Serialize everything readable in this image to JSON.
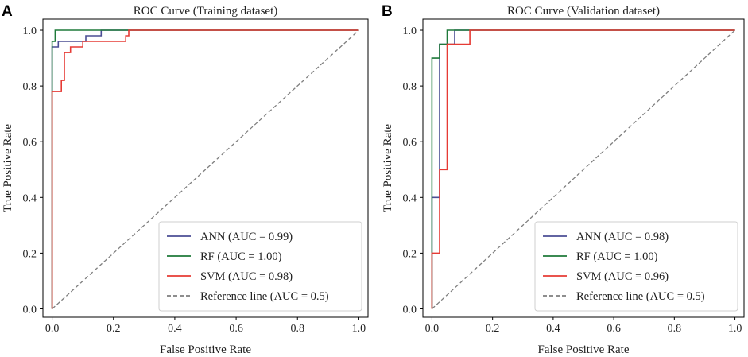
{
  "chart_data": [
    {
      "type": "line",
      "panel_label": "A",
      "title": "ROC Curve (Training dataset)",
      "xlabel": "False Positive Rate",
      "ylabel": "True Positive Rate",
      "xlim": [
        -0.03,
        1.03
      ],
      "ylim": [
        -0.03,
        1.04
      ],
      "xticks": [
        "0.0",
        "0.2",
        "0.4",
        "0.6",
        "0.8",
        "1.0"
      ],
      "yticks": [
        "0.0",
        "0.2",
        "0.4",
        "0.6",
        "0.8",
        "1.0"
      ],
      "grid": false,
      "legend_position": "bottom-right",
      "series": [
        {
          "name": "ANN (AUC = 0.99)",
          "color": "#4b4e94",
          "style": "solid",
          "x": [
            0,
            0,
            0.02,
            0.02,
            0.11,
            0.11,
            0.16,
            0.16,
            1
          ],
          "y": [
            0,
            0.94,
            0.94,
            0.96,
            0.96,
            0.98,
            0.98,
            1,
            1
          ]
        },
        {
          "name": "RF (AUC = 1.00)",
          "color": "#1f7a3a",
          "style": "solid",
          "x": [
            0,
            0,
            0.01,
            0.01,
            0.24,
            0.24,
            1
          ],
          "y": [
            0,
            0.96,
            0.96,
            1,
            1,
            1,
            1
          ]
        },
        {
          "name": "SVM (AUC = 0.98)",
          "color": "#e63b35",
          "style": "solid",
          "x": [
            0,
            0,
            0.03,
            0.03,
            0.04,
            0.04,
            0.06,
            0.06,
            0.1,
            0.1,
            0.16,
            0.16,
            0.24,
            0.24,
            0.25,
            0.25,
            1
          ],
          "y": [
            0,
            0.78,
            0.78,
            0.82,
            0.82,
            0.92,
            0.92,
            0.94,
            0.94,
            0.96,
            0.96,
            0.96,
            0.96,
            0.98,
            0.98,
            1,
            1
          ]
        },
        {
          "name": "Reference line (AUC = 0.5)",
          "color": "#7f7f7f",
          "style": "dashed",
          "x": [
            0,
            1
          ],
          "y": [
            0,
            1
          ]
        }
      ]
    },
    {
      "type": "line",
      "panel_label": "B",
      "title": "ROC Curve (Validation dataset)",
      "xlabel": "False Positive Rate",
      "ylabel": "True Positive Rate",
      "xlim": [
        -0.03,
        1.03
      ],
      "ylim": [
        -0.03,
        1.04
      ],
      "xticks": [
        "0.0",
        "0.2",
        "0.4",
        "0.6",
        "0.8",
        "1.0"
      ],
      "yticks": [
        "0.0",
        "0.2",
        "0.4",
        "0.6",
        "0.8",
        "1.0"
      ],
      "grid": false,
      "legend_position": "bottom-right",
      "series": [
        {
          "name": "ANN (AUC = 0.98)",
          "color": "#4b4e94",
          "style": "solid",
          "x": [
            0,
            0,
            0.025,
            0.025,
            0.05,
            0.05,
            0.075,
            0.075,
            1
          ],
          "y": [
            0,
            0.4,
            0.4,
            0.95,
            0.95,
            0.95,
            0.95,
            1,
            1
          ]
        },
        {
          "name": "RF (AUC = 1.00)",
          "color": "#1f7a3a",
          "style": "solid",
          "x": [
            0,
            0,
            0.025,
            0.025,
            0.05,
            0.05,
            1
          ],
          "y": [
            0,
            0.9,
            0.9,
            0.95,
            0.95,
            1,
            1
          ]
        },
        {
          "name": "SVM (AUC = 0.96)",
          "color": "#e63b35",
          "style": "solid",
          "x": [
            0,
            0,
            0.025,
            0.025,
            0.05,
            0.05,
            0.075,
            0.075,
            0.125,
            0.125,
            1
          ],
          "y": [
            0,
            0.2,
            0.2,
            0.5,
            0.5,
            0.95,
            0.95,
            0.95,
            0.95,
            1,
            1
          ]
        },
        {
          "name": "Reference line (AUC = 0.5)",
          "color": "#7f7f7f",
          "style": "dashed",
          "x": [
            0,
            1
          ],
          "y": [
            0,
            1
          ]
        }
      ]
    }
  ]
}
